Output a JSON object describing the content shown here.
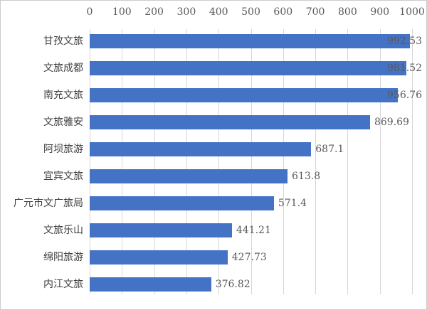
{
  "chart_data": {
    "type": "bar",
    "orientation": "horizontal",
    "title": "",
    "xlabel": "",
    "ylabel": "",
    "categories": [
      "甘孜文旅",
      "文旅成都",
      "南充文旅",
      "文旅雅安",
      "阿坝旅游",
      "宜宾文旅",
      "广元市文广旅局",
      "文旅乐山",
      "绵阳旅游",
      "内江文旅"
    ],
    "values": [
      992.53,
      981.52,
      956.76,
      869.69,
      687.1,
      613.8,
      571.4,
      441.21,
      427.73,
      376.82
    ],
    "value_labels": [
      "992.53",
      "981.52",
      "956.76",
      "869.69",
      "687.1",
      "613.8",
      "571.4",
      "441.21",
      "427.73",
      "376.82"
    ],
    "x_ticks": [
      0,
      100,
      200,
      300,
      400,
      500,
      600,
      700,
      800,
      900,
      1000
    ],
    "x_tick_labels": [
      "0",
      "100",
      "200",
      "300",
      "400",
      "500",
      "600",
      "700",
      "800",
      "900",
      "1000"
    ],
    "xlim": [
      0,
      1000
    ],
    "axis_position": "top",
    "grid": true,
    "legend": false,
    "colors": {
      "bar": "#4472c4",
      "gridline": "#d6d6d6",
      "tick_label": "#595959",
      "value_label": "#595959",
      "category_label": "#3f3f3f",
      "frame_border": "#cccccc",
      "background": "#ffffff"
    }
  }
}
